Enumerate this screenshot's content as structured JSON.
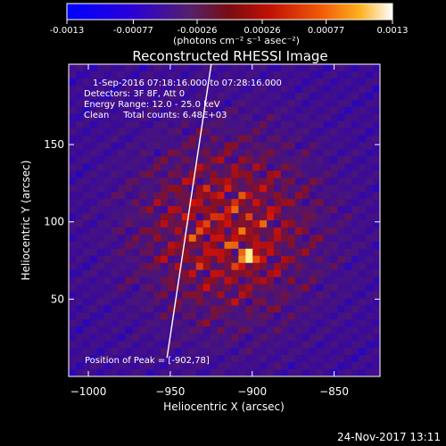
{
  "colorbar": {
    "tick_labels": [
      "-0.0013",
      "-0.00077",
      "-0.00026",
      "0.00026",
      "0.00077",
      "0.0013"
    ],
    "unit_label": "(photons cm⁻² s⁻¹ asec⁻²)",
    "range": [
      -0.0013,
      0.0013
    ]
  },
  "footer": {
    "timestamp": "24-Nov-2017 13:11"
  },
  "chart_data": {
    "type": "heatmap",
    "title": "Reconstructed RHESSI Image",
    "xlabel": "Heliocentric X (arcsec)",
    "ylabel": "Heliocentric Y (arcsec)",
    "xlim": [
      -1012,
      -822
    ],
    "ylim": [
      0,
      202
    ],
    "x_ticks": [
      -1000,
      -950,
      -900,
      -850
    ],
    "y_ticks": [
      50,
      100,
      150
    ],
    "x_tick_labels": [
      "−1000",
      "−950",
      "−900",
      "−850"
    ],
    "y_tick_labels": [
      "50",
      "100",
      "150"
    ],
    "annotations": [
      "1-Sep-2016 07:18:16.000 to 07:28:16.000",
      "Detectors: 3F 8F, Att 0",
      "Energy Range: 12.0 - 25.0 keV",
      "Clean     Total counts: 6.48E+03"
    ],
    "peak_label": "Position of Peak = [-902,78]",
    "peak": [
      -902,
      78
    ],
    "limb_line": [
      [
        -952,
        12
      ],
      [
        -925,
        202
      ]
    ],
    "grid_size": [
      44,
      44
    ],
    "colormap": [
      "#0000ff",
      "#3a0a9a",
      "#4a1578",
      "#8a1020",
      "#d01008",
      "#f07a10",
      "#fff090"
    ]
  }
}
